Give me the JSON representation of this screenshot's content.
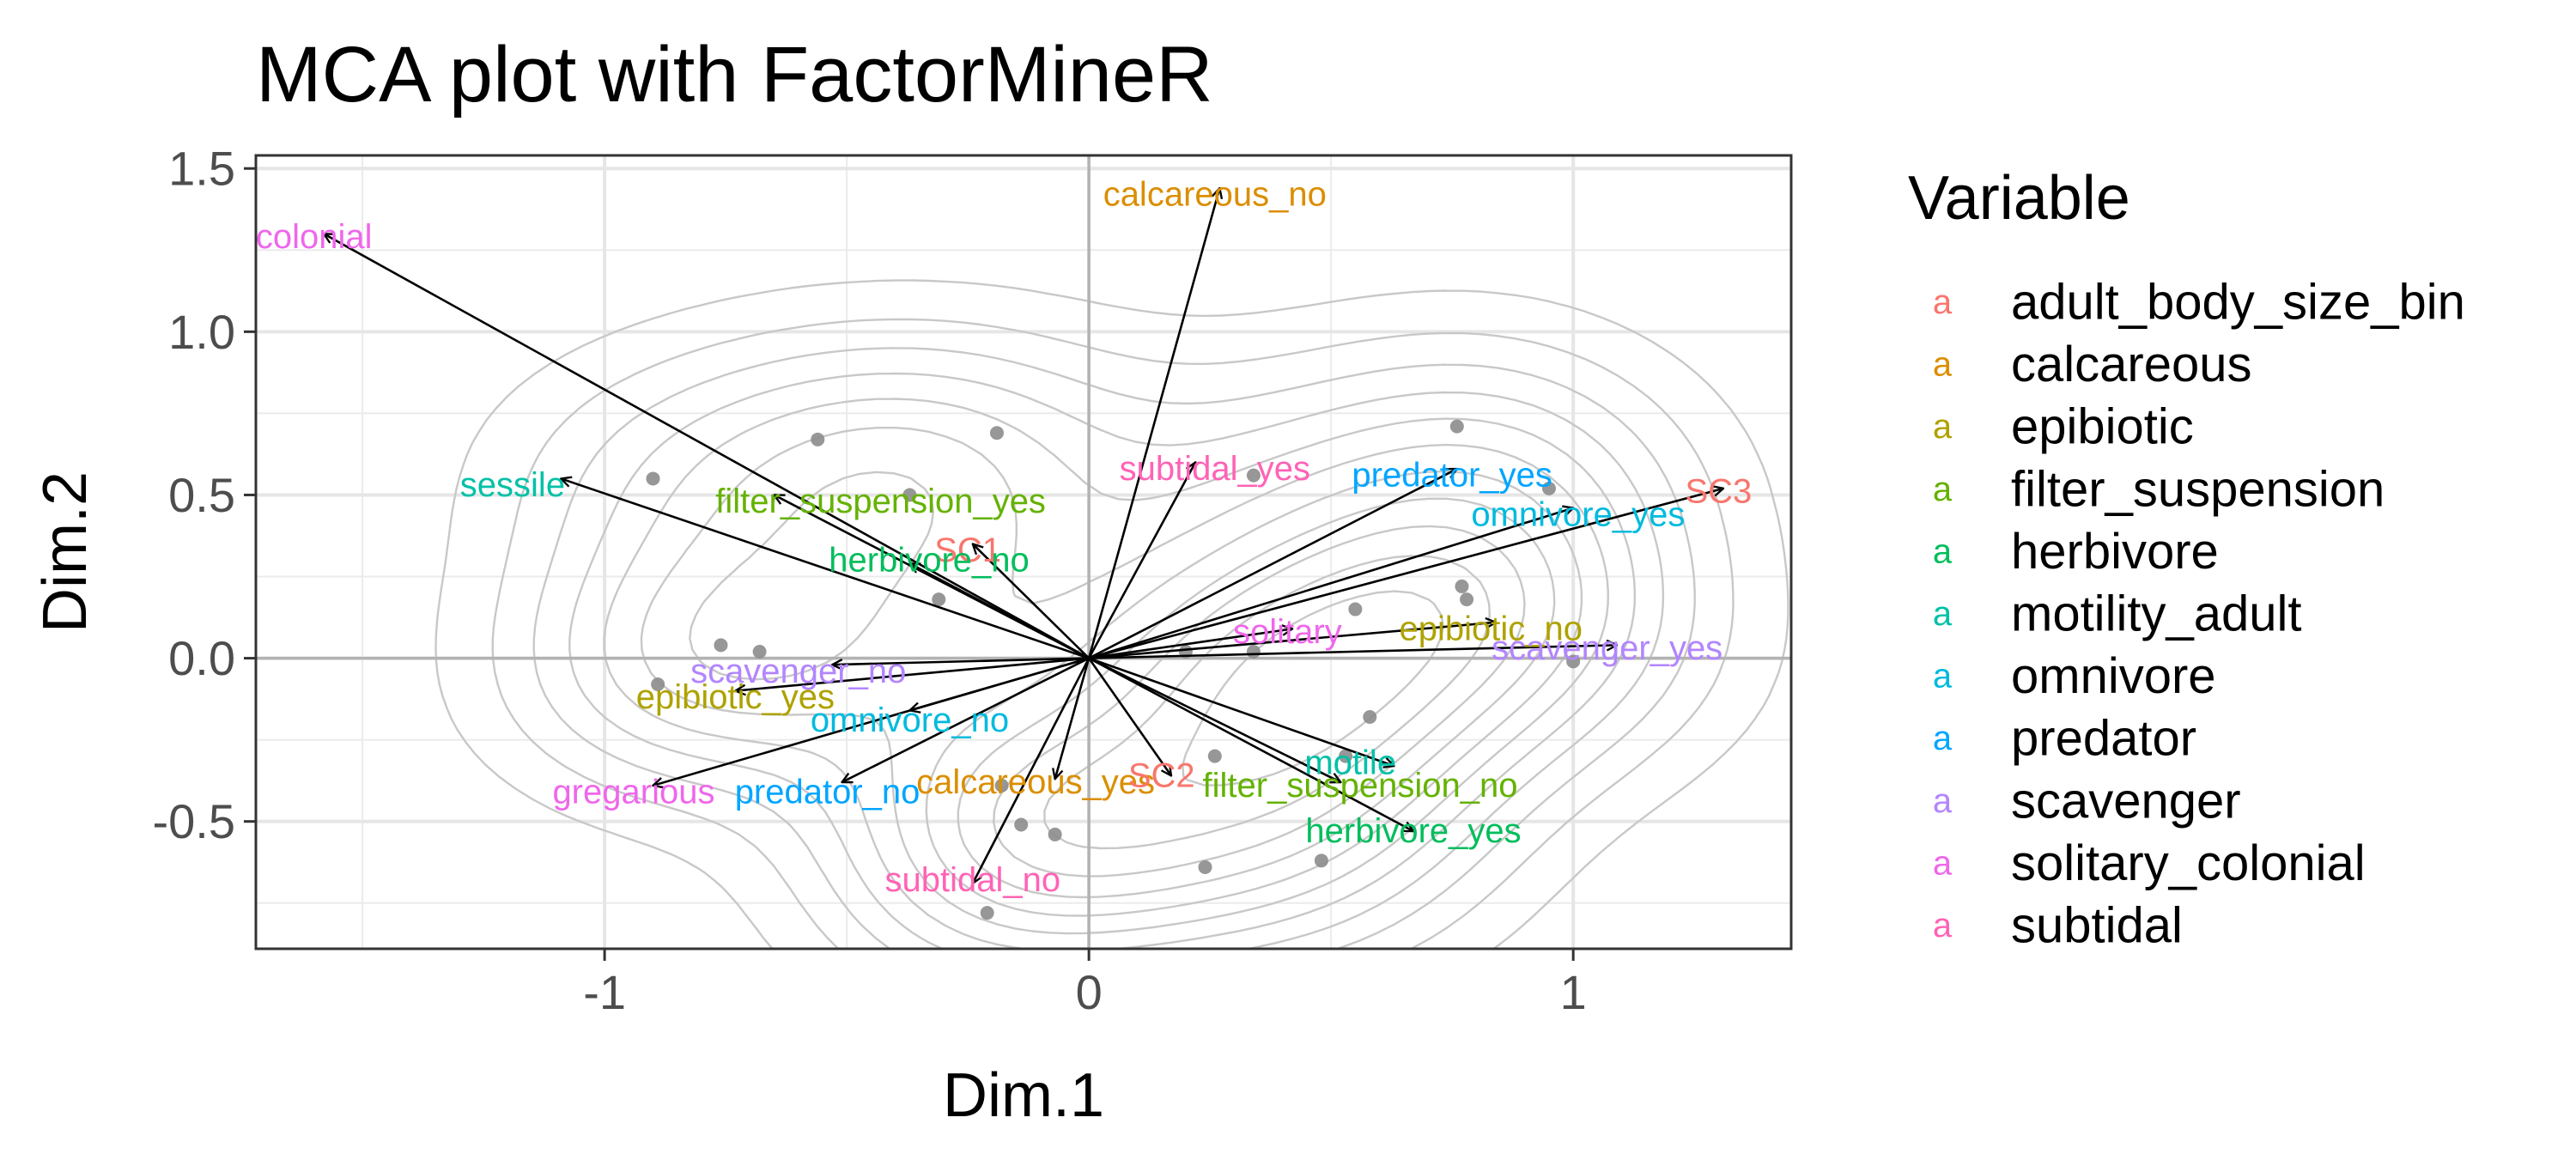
{
  "chart_data": {
    "type": "scatter",
    "title": "MCA plot with FactorMineR",
    "xlabel": "Dim.1",
    "ylabel": "Dim.2",
    "xlim": [
      -1.72,
      1.45
    ],
    "ylim": [
      -0.89,
      1.54
    ],
    "x_ticks": [
      -1,
      0,
      1
    ],
    "x_tick_labels": [
      "-1",
      "0",
      "1"
    ],
    "y_ticks": [
      -0.5,
      0.0,
      0.5,
      1.0,
      1.5
    ],
    "y_tick_labels": [
      "-0.5",
      "0.0",
      "0.5",
      "1.0",
      "1.5"
    ],
    "grid": true,
    "legend": {
      "title": "Variable",
      "position": "right",
      "key_symbol": "a",
      "entries": [
        {
          "name": "adult_body_size_bin",
          "color": "#F8766D"
        },
        {
          "name": "calcareous",
          "color": "#DB8E00"
        },
        {
          "name": "epibiotic",
          "color": "#AEA200"
        },
        {
          "name": "filter_suspension",
          "color": "#64B200"
        },
        {
          "name": "herbivore",
          "color": "#00BD5C"
        },
        {
          "name": "motility_adult",
          "color": "#00C1A7"
        },
        {
          "name": "omnivore",
          "color": "#00BADE"
        },
        {
          "name": "predator",
          "color": "#00A6FF"
        },
        {
          "name": "scavenger",
          "color": "#B385FF"
        },
        {
          "name": "solitary_colonial",
          "color": "#EF67EB"
        },
        {
          "name": "subtidal",
          "color": "#FF63B6"
        }
      ]
    },
    "arrows": [
      {
        "label": "colonial",
        "variable": "solitary_colonial",
        "x": -1.58,
        "y": 1.3,
        "lx": -1.6,
        "ly": 1.29
      },
      {
        "label": "calcareous_no",
        "variable": "calcareous",
        "x": 0.27,
        "y": 1.44,
        "lx": 0.26,
        "ly": 1.42
      },
      {
        "label": "sessile",
        "variable": "motility_adult",
        "x": -1.09,
        "y": 0.55,
        "lx": -1.19,
        "ly": 0.53
      },
      {
        "label": "filter_suspension_yes",
        "variable": "filter_suspension",
        "x": -0.65,
        "y": 0.5,
        "lx": -0.43,
        "ly": 0.48
      },
      {
        "label": "subtidal_yes",
        "variable": "subtidal",
        "x": 0.22,
        "y": 0.6,
        "lx": 0.26,
        "ly": 0.58
      },
      {
        "label": "predator_yes",
        "variable": "predator",
        "x": 0.76,
        "y": 0.58,
        "lx": 0.75,
        "ly": 0.56
      },
      {
        "label": "omnivore_yes",
        "variable": "omnivore",
        "x": 1.0,
        "y": 0.46,
        "lx": 1.01,
        "ly": 0.44
      },
      {
        "label": "SC3",
        "variable": "adult_body_size_bin",
        "x": 1.31,
        "y": 0.52,
        "lx": 1.3,
        "ly": 0.51
      },
      {
        "label": "SC1",
        "variable": "adult_body_size_bin",
        "x": -0.24,
        "y": 0.35,
        "lx": -0.25,
        "ly": 0.33
      },
      {
        "label": "herbivore_no",
        "variable": "herbivore",
        "x": -0.37,
        "y": 0.29,
        "lx": -0.33,
        "ly": 0.3
      },
      {
        "label": "solitary",
        "variable": "solitary_colonial",
        "x": 0.42,
        "y": 0.09,
        "lx": 0.41,
        "ly": 0.08
      },
      {
        "label": "epibiotic_no",
        "variable": "epibiotic",
        "x": 0.84,
        "y": 0.11,
        "lx": 0.83,
        "ly": 0.09
      },
      {
        "label": "scavenger_yes",
        "variable": "scavenger",
        "x": 1.09,
        "y": 0.04,
        "lx": 1.07,
        "ly": 0.03
      },
      {
        "label": "scavenger_no",
        "variable": "scavenger",
        "x": -0.53,
        "y": -0.02,
        "lx": -0.6,
        "ly": -0.04
      },
      {
        "label": "epibiotic_yes",
        "variable": "epibiotic",
        "x": -0.73,
        "y": -0.1,
        "lx": -0.73,
        "ly": -0.12
      },
      {
        "label": "omnivore_no",
        "variable": "omnivore",
        "x": -0.37,
        "y": -0.16,
        "lx": -0.37,
        "ly": -0.19
      },
      {
        "label": "gregarious",
        "variable": "solitary_colonial",
        "x": -0.9,
        "y": -0.39,
        "lx": -0.94,
        "ly": -0.41
      },
      {
        "label": "predator_no",
        "variable": "predator",
        "x": -0.51,
        "y": -0.38,
        "lx": -0.54,
        "ly": -0.41
      },
      {
        "label": "calcareous_yes",
        "variable": "calcareous",
        "x": -0.07,
        "y": -0.37,
        "lx": -0.11,
        "ly": -0.38
      },
      {
        "label": "SC2",
        "variable": "adult_body_size_bin",
        "x": 0.17,
        "y": -0.36,
        "lx": 0.15,
        "ly": -0.36
      },
      {
        "label": "filter_suspension_no",
        "variable": "filter_suspension",
        "x": 0.52,
        "y": -0.38,
        "lx": 0.56,
        "ly": -0.39
      },
      {
        "label": "motile",
        "variable": "motility_adult",
        "x": 0.63,
        "y": -0.33,
        "lx": 0.54,
        "ly": -0.32
      },
      {
        "label": "herbivore_yes",
        "variable": "herbivore",
        "x": 0.67,
        "y": -0.53,
        "lx": 0.67,
        "ly": -0.53
      },
      {
        "label": "subtidal_no",
        "variable": "subtidal",
        "x": -0.24,
        "y": -0.69,
        "lx": -0.24,
        "ly": -0.68
      }
    ],
    "individuals": [
      [
        -0.9,
        0.55
      ],
      [
        -0.56,
        0.67
      ],
      [
        -0.19,
        0.69
      ],
      [
        -0.37,
        0.5
      ],
      [
        -0.31,
        0.18
      ],
      [
        -0.76,
        0.04
      ],
      [
        -0.68,
        0.02
      ],
      [
        -0.89,
        -0.08
      ],
      [
        0.34,
        0.56
      ],
      [
        0.76,
        0.71
      ],
      [
        0.95,
        0.52
      ],
      [
        0.77,
        0.22
      ],
      [
        0.78,
        0.18
      ],
      [
        0.55,
        0.15
      ],
      [
        0.34,
        0.02
      ],
      [
        0.2,
        0.02
      ],
      [
        1.0,
        -0.01
      ],
      [
        0.58,
        -0.18
      ],
      [
        0.26,
        -0.3
      ],
      [
        0.53,
        -0.3
      ],
      [
        -0.18,
        -0.39
      ],
      [
        -0.14,
        -0.51
      ],
      [
        -0.07,
        -0.54
      ],
      [
        0.24,
        -0.64
      ],
      [
        0.48,
        -0.62
      ],
      [
        -0.21,
        -0.78
      ]
    ],
    "density_center": [
      -0.5,
      0.0
    ]
  }
}
